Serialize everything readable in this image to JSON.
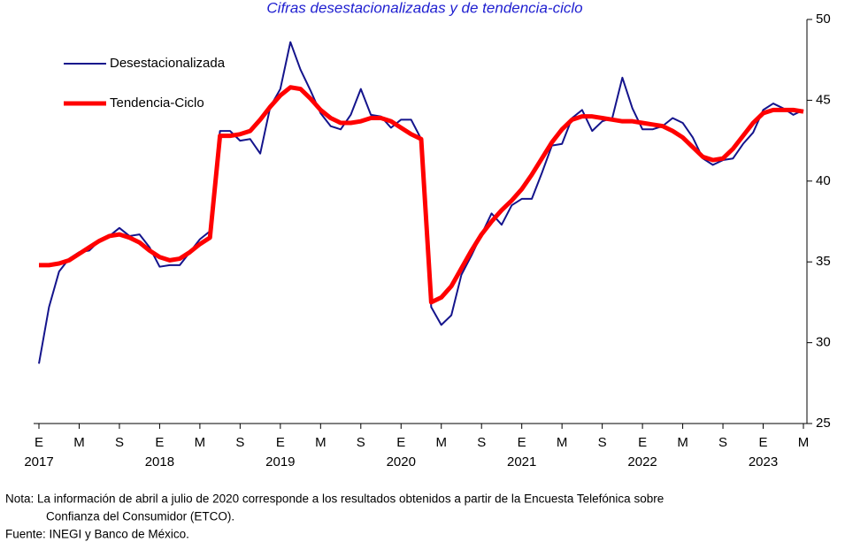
{
  "chart_data": {
    "type": "line",
    "title": "Cifras desestacionalizadas y de tendencia-ciclo",
    "categories": [
      "E",
      null,
      null,
      null,
      "M",
      null,
      null,
      null,
      "S",
      null,
      null,
      null,
      "E",
      null,
      null,
      null,
      "M",
      null,
      null,
      null,
      "S",
      null,
      null,
      null,
      "E",
      null,
      null,
      null,
      "M",
      null,
      null,
      null,
      "S",
      null,
      null,
      null,
      "E",
      null,
      null,
      null,
      "M",
      null,
      null,
      null,
      "S",
      null,
      null,
      null,
      "E",
      null,
      null,
      null,
      "M",
      null,
      null,
      null,
      "S",
      null,
      null,
      null,
      "E",
      null,
      null,
      null,
      "M",
      null,
      null,
      null,
      "S",
      null,
      null,
      null,
      "E",
      null,
      null,
      null,
      "M"
    ],
    "years": [
      "2017",
      "2018",
      "2019",
      "2020",
      "2021",
      "2022",
      "2023"
    ],
    "series": [
      {
        "name": "Desestacionalizada",
        "color": "#14148c",
        "width": 2,
        "values": [
          28.7,
          32.2,
          34.4,
          35.2,
          35.6,
          35.7,
          36.3,
          36.6,
          37.1,
          36.6,
          36.7,
          35.9,
          34.7,
          34.8,
          34.8,
          35.6,
          36.4,
          36.9,
          43.1,
          43.1,
          42.5,
          42.6,
          41.7,
          44.6,
          45.7,
          48.6,
          46.9,
          45.6,
          44.2,
          43.4,
          43.2,
          44.1,
          45.7,
          44.1,
          44.0,
          43.3,
          43.8,
          43.8,
          42.6,
          32.2,
          31.1,
          31.7,
          34.2,
          35.4,
          36.7,
          38.0,
          37.3,
          38.5,
          38.9,
          38.9,
          40.5,
          42.2,
          42.3,
          43.9,
          44.4,
          43.1,
          43.7,
          43.9,
          46.4,
          44.5,
          43.2,
          43.2,
          43.4,
          43.9,
          43.6,
          42.7,
          41.4,
          41.0,
          41.3,
          41.4,
          42.3,
          43.0,
          44.4,
          44.8,
          44.5,
          44.1,
          44.4
        ]
      },
      {
        "name": "Tendencia-Ciclo",
        "color": "#ff0000",
        "width": 5,
        "values": [
          34.8,
          34.8,
          34.9,
          35.1,
          35.5,
          35.9,
          36.3,
          36.6,
          36.7,
          36.5,
          36.2,
          35.7,
          35.3,
          35.1,
          35.2,
          35.6,
          36.1,
          36.5,
          42.8,
          42.8,
          42.9,
          43.1,
          43.8,
          44.6,
          45.3,
          45.8,
          45.7,
          45.1,
          44.4,
          43.9,
          43.6,
          43.6,
          43.7,
          43.9,
          43.9,
          43.7,
          43.3,
          42.9,
          42.6,
          32.5,
          32.8,
          33.5,
          34.6,
          35.7,
          36.7,
          37.5,
          38.2,
          38.8,
          39.5,
          40.4,
          41.4,
          42.4,
          43.2,
          43.8,
          44.0,
          44.0,
          43.9,
          43.8,
          43.7,
          43.7,
          43.6,
          43.5,
          43.4,
          43.1,
          42.7,
          42.1,
          41.5,
          41.3,
          41.4,
          42.0,
          42.8,
          43.6,
          44.2,
          44.4,
          44.4,
          44.4,
          44.3
        ]
      }
    ],
    "ylim": [
      25,
      50
    ],
    "yticks": [
      25,
      30,
      35,
      40,
      45,
      50
    ],
    "legend": "upper-left",
    "notes": [
      "Nota: La información de abril a julio de 2020 corresponde a los resultados obtenidos a partir de la Encuesta Telefónica sobre",
      "Confianza del Consumidor (ETCO).",
      "Fuente: INEGI y Banco de México."
    ]
  }
}
